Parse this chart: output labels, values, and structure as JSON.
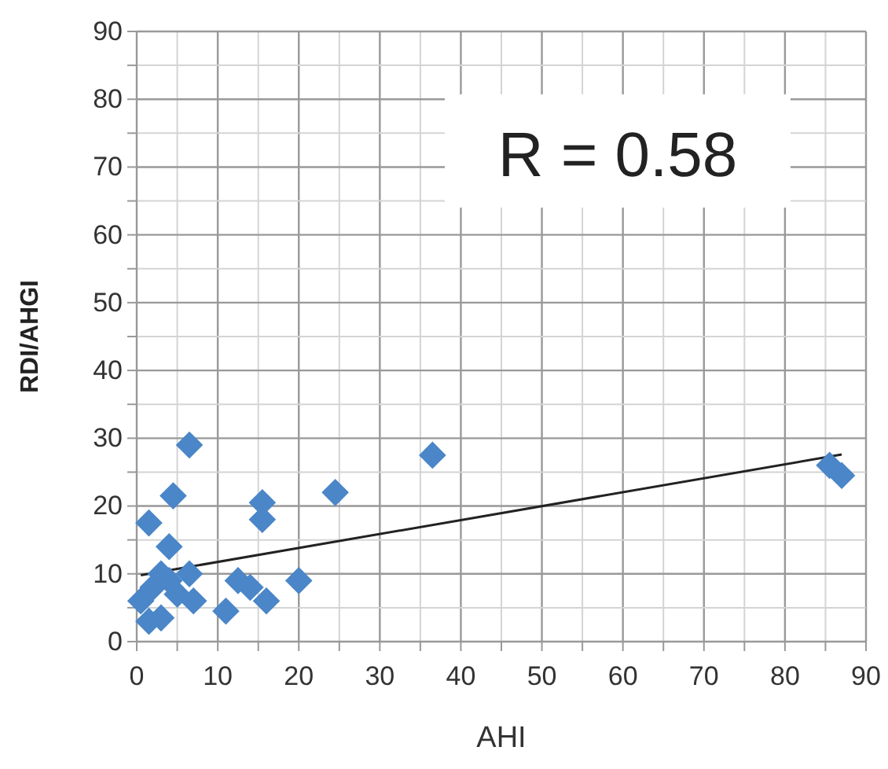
{
  "chart_data": {
    "type": "scatter",
    "xlabel": "AHI",
    "ylabel": "RDI/AHGI",
    "annotations": [
      "R = 0.58"
    ],
    "xlim": [
      0,
      90
    ],
    "ylim": [
      0,
      90
    ],
    "xticks": [
      0,
      {
        "value": 5,
        "label": null
      },
      10,
      {
        "value": 15,
        "label": null
      },
      20,
      {
        "value": 25,
        "label": null
      },
      30,
      {
        "value": 35,
        "label": null
      },
      40,
      {
        "value": 45,
        "label": null
      },
      50,
      {
        "value": 55,
        "label": null
      },
      60,
      {
        "value": 65,
        "label": null
      },
      70,
      {
        "value": 75,
        "label": null
      },
      80,
      {
        "value": 85,
        "label": null
      },
      90
    ],
    "yticks": [
      0,
      {
        "value": 5,
        "label": null
      },
      10,
      {
        "value": 15,
        "label": null
      },
      20,
      {
        "value": 25,
        "label": null
      },
      30,
      {
        "value": 35,
        "label": null
      },
      40,
      {
        "value": 45,
        "label": null
      },
      50,
      {
        "value": 55,
        "label": null
      },
      60,
      {
        "value": 65,
        "label": null
      },
      70,
      {
        "value": 75,
        "label": null
      },
      80,
      {
        "value": 85,
        "label": null
      },
      90
    ],
    "grid": true,
    "marker": "diamond",
    "series": [
      {
        "type": "scatter",
        "color": "#4a86c8",
        "x": [
          1.5,
          4.5,
          6.5,
          4,
          15.5,
          15.5,
          24.5,
          36.5,
          20,
          11,
          12.5,
          14,
          16,
          0.5,
          1.5,
          3,
          2,
          3,
          5,
          6.5,
          7,
          4,
          85.5,
          87
        ],
        "values": [
          17.5,
          21.5,
          29,
          14,
          20.5,
          18,
          22,
          27.5,
          9,
          4.5,
          9,
          8,
          6,
          6,
          3,
          3.5,
          8,
          10,
          7,
          10,
          6,
          9,
          26,
          24.5
        ]
      },
      {
        "type": "line",
        "color": "#222222",
        "x": [
          0.5,
          87
        ],
        "values": [
          9.8,
          27.6
        ],
        "marker": "none"
      }
    ]
  }
}
